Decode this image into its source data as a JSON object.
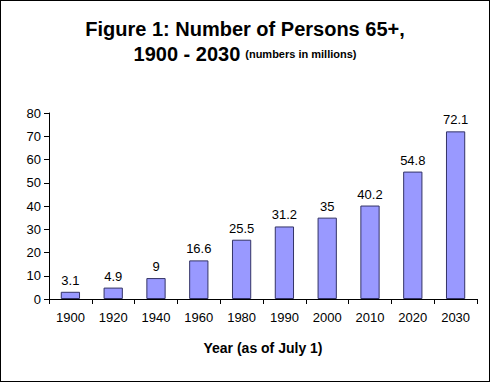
{
  "chart_data": {
    "type": "bar",
    "title": "Figure 1: Number of Persons 65+, 1900 - 2030",
    "subtitle": "(numbers in millions)",
    "x_label": "Year (as of July 1)",
    "categories": [
      "1900",
      "1920",
      "1940",
      "1960",
      "1980",
      "1990",
      "2000",
      "2010",
      "2020",
      "2030"
    ],
    "values": [
      3.1,
      4.9,
      9,
      16.6,
      25.5,
      31.2,
      35,
      40.2,
      54.8,
      72.1
    ],
    "color": "#9999ff",
    "ylim": [
      0,
      80
    ],
    "yticks": [
      0,
      10,
      20,
      30,
      40,
      50,
      60,
      70,
      80
    ],
    "grid": false,
    "data_labels": true
  }
}
